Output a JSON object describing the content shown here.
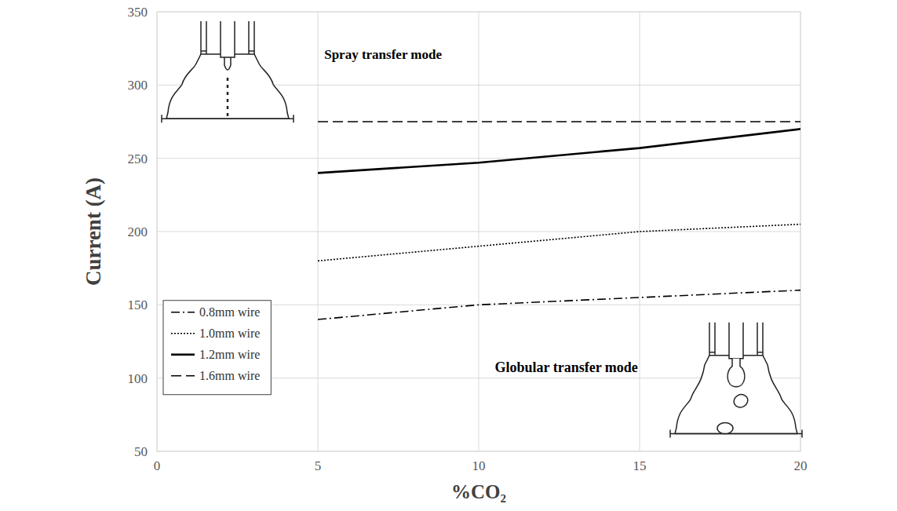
{
  "chart_data": {
    "type": "line",
    "x_label": "%CO₂",
    "y_label": "Current (A)",
    "x": [
      5,
      10,
      15,
      20
    ],
    "series": [
      {
        "name": "0.8mm wire",
        "color": "#000000",
        "line_style": "dashdot",
        "values": [
          140,
          150,
          155,
          160
        ]
      },
      {
        "name": "1.0mm wire",
        "color": "#000000",
        "line_style": "dotted",
        "values": [
          180,
          190,
          200,
          205
        ]
      },
      {
        "name": "1.2mm wire",
        "color": "#000000",
        "line_style": "solid",
        "values": [
          240,
          247,
          257,
          270
        ]
      },
      {
        "name": "1.6mm wire",
        "color": "#000000",
        "line_style": "dashed",
        "values": [
          275,
          275,
          275,
          275
        ]
      }
    ],
    "annotations": [
      "Spray transfer mode",
      "Globular transfer mode"
    ],
    "xlim": [
      0,
      20
    ],
    "xticks": [
      0,
      5,
      10,
      15,
      20
    ],
    "ylim": [
      50,
      350
    ],
    "yticks": [
      50,
      100,
      150,
      200,
      250,
      300,
      350
    ],
    "grid": true,
    "legend": "lower left"
  }
}
